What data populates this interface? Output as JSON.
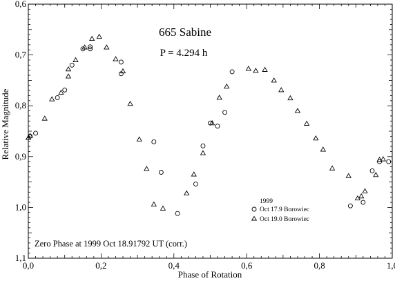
{
  "chart_data": {
    "type": "scatter",
    "title": "665 Sabine",
    "period_label": "P = 4.294 h",
    "xlabel": "Phase of Rotation",
    "ylabel": "Relative Magnitude",
    "xlim": [
      0.0,
      1.0
    ],
    "ylim": [
      0.6,
      1.1
    ],
    "y_inverted": true,
    "x_ticks": [
      "0,0",
      "0,2",
      "0,4",
      "0,6",
      "0,8",
      "1,0"
    ],
    "x_tick_values": [
      0.0,
      0.2,
      0.4,
      0.6,
      0.8,
      1.0
    ],
    "y_ticks": [
      "0,6",
      "0,7",
      "0,8",
      "0,9",
      "1,0",
      "1,1"
    ],
    "y_tick_values": [
      0.6,
      0.7,
      0.8,
      0.9,
      1.0,
      1.1
    ],
    "legend_title": "1999",
    "legend_position": "lower-right",
    "annotation": "Zero Phase at 1999 Oct 18.91792 UT (corr.)",
    "series": [
      {
        "name": "Oct 17.9 Borowiec",
        "marker": "circle",
        "points": [
          [
            0.005,
            0.86
          ],
          [
            0.02,
            0.854
          ],
          [
            0.08,
            0.784
          ],
          [
            0.1,
            0.769
          ],
          [
            0.12,
            0.72
          ],
          [
            0.15,
            0.688
          ],
          [
            0.17,
            0.688
          ],
          [
            0.17,
            0.684
          ],
          [
            0.255,
            0.714
          ],
          [
            0.255,
            0.737
          ],
          [
            0.345,
            0.871
          ],
          [
            0.365,
            0.931
          ],
          [
            0.41,
            1.012
          ],
          [
            0.46,
            0.954
          ],
          [
            0.48,
            0.879
          ],
          [
            0.5,
            0.834
          ],
          [
            0.52,
            0.84
          ],
          [
            0.54,
            0.813
          ],
          [
            0.56,
            0.733
          ],
          [
            0.885,
            0.997
          ],
          [
            0.92,
            0.99
          ],
          [
            0.945,
            0.928
          ],
          [
            0.965,
            0.91
          ],
          [
            0.99,
            0.91
          ]
        ]
      },
      {
        "name": "Oct 19.0 Borowiec",
        "marker": "triangle",
        "points": [
          [
            0.0,
            0.863
          ],
          [
            0.005,
            0.859
          ],
          [
            0.045,
            0.825
          ],
          [
            0.065,
            0.787
          ],
          [
            0.09,
            0.774
          ],
          [
            0.11,
            0.742
          ],
          [
            0.11,
            0.728
          ],
          [
            0.13,
            0.71
          ],
          [
            0.155,
            0.685
          ],
          [
            0.175,
            0.668
          ],
          [
            0.195,
            0.664
          ],
          [
            0.215,
            0.685
          ],
          [
            0.24,
            0.708
          ],
          [
            0.26,
            0.732
          ],
          [
            0.28,
            0.796
          ],
          [
            0.305,
            0.866
          ],
          [
            0.325,
            0.924
          ],
          [
            0.345,
            0.994
          ],
          [
            0.37,
            1.002
          ],
          [
            0.435,
            0.972
          ],
          [
            0.455,
            0.935
          ],
          [
            0.48,
            0.893
          ],
          [
            0.505,
            0.834
          ],
          [
            0.525,
            0.784
          ],
          [
            0.545,
            0.762
          ],
          [
            0.605,
            0.727
          ],
          [
            0.625,
            0.731
          ],
          [
            0.65,
            0.729
          ],
          [
            0.675,
            0.75
          ],
          [
            0.695,
            0.769
          ],
          [
            0.72,
            0.785
          ],
          [
            0.74,
            0.81
          ],
          [
            0.765,
            0.835
          ],
          [
            0.79,
            0.864
          ],
          [
            0.81,
            0.886
          ],
          [
            0.835,
            0.923
          ],
          [
            0.88,
            0.938
          ],
          [
            0.905,
            0.982
          ],
          [
            0.915,
            0.978
          ],
          [
            0.925,
            0.968
          ],
          [
            0.955,
            0.936
          ],
          [
            0.965,
            0.906
          ],
          [
            0.975,
            0.905
          ]
        ]
      }
    ]
  }
}
